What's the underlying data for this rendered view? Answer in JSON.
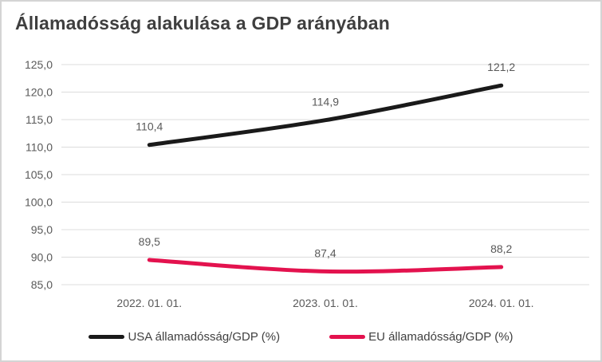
{
  "chart_data": {
    "type": "line",
    "title": "Államadósság alakulása a GDP arányában",
    "categories": [
      "2022. 01. 01.",
      "2023. 01. 01.",
      "2024. 01. 01."
    ],
    "series": [
      {
        "id": "usa",
        "name": "USA államadósság/GDP (%)",
        "color": "#1a1a1a",
        "values": [
          110.4,
          114.9,
          121.2
        ],
        "labels": [
          "110,4",
          "114,9",
          "121,2"
        ]
      },
      {
        "id": "eu",
        "name": "EU államadósság/GDP (%)",
        "color": "#e3124e",
        "values": [
          89.5,
          87.4,
          88.2
        ],
        "labels": [
          "89,5",
          "87,4",
          "88,2"
        ]
      }
    ],
    "xlabel": "",
    "ylabel": "",
    "ylim": [
      85,
      125
    ],
    "ytick_step": 5,
    "yticks": [
      {
        "value": 125,
        "label": "125,0"
      },
      {
        "value": 120,
        "label": "120,0"
      },
      {
        "value": 115,
        "label": "115,0"
      },
      {
        "value": 110,
        "label": "110,0"
      },
      {
        "value": 105,
        "label": "105,0"
      },
      {
        "value": 100,
        "label": "100,0"
      },
      {
        "value": 95,
        "label": "95,0"
      },
      {
        "value": 90,
        "label": "90,0"
      },
      {
        "value": 85,
        "label": "85,0"
      }
    ],
    "grid": true,
    "legend_position": "bottom",
    "data_labels_shown": true,
    "line_smoothing": true
  },
  "colors": {
    "grid": "#dcdcdc",
    "tick_text": "#595959",
    "data_label_text": "#595959",
    "title_text": "#3f3f3f",
    "legend_text": "#404040",
    "frame_border": "#d4d4d4",
    "background": "#ffffff"
  }
}
